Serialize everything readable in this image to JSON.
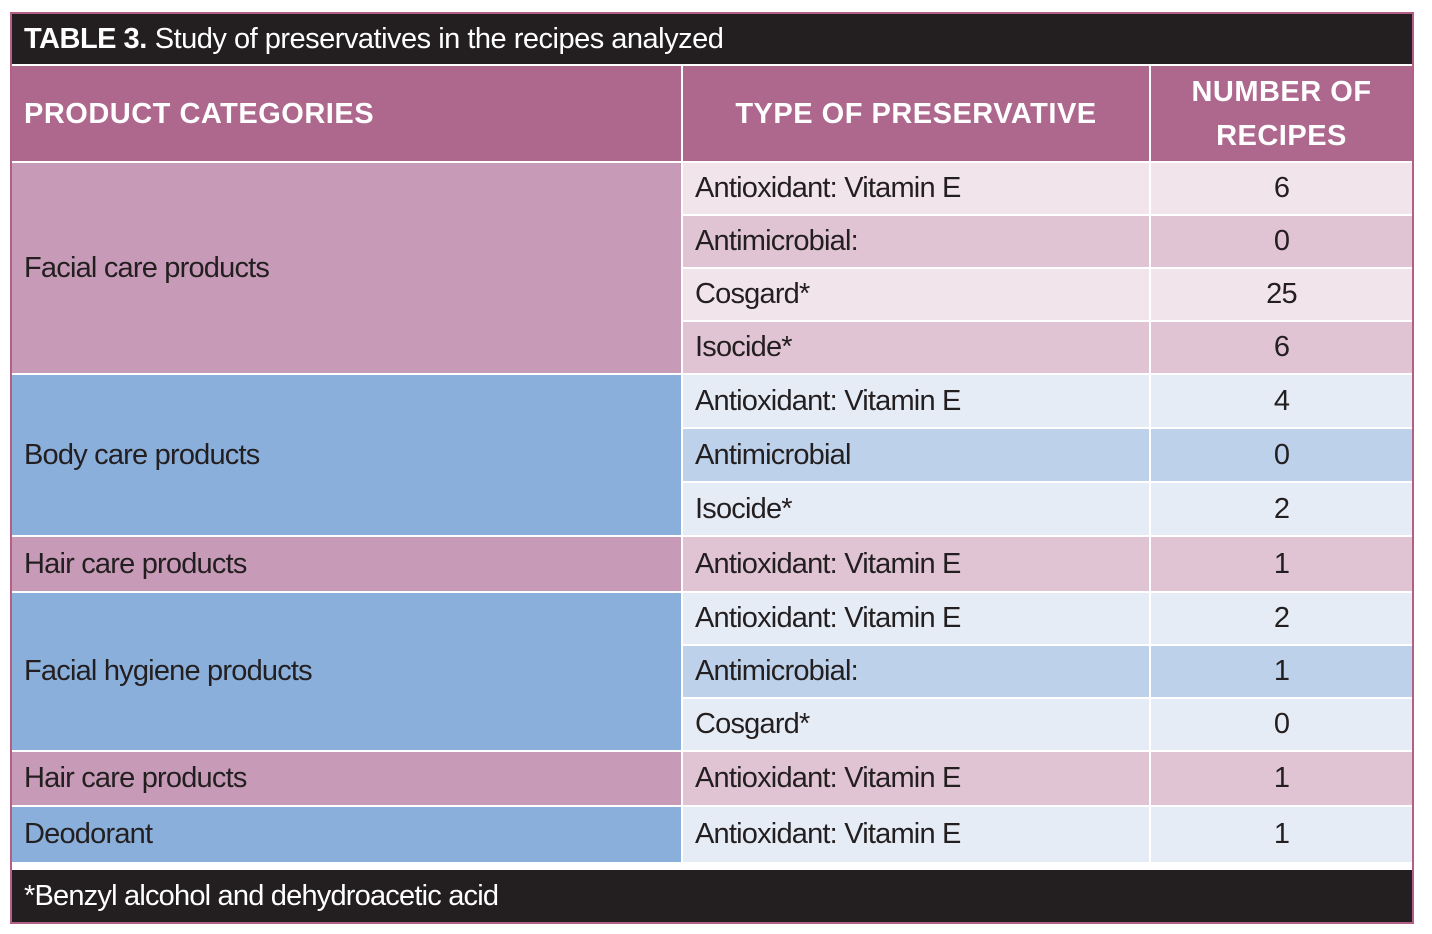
{
  "title": {
    "label": "TABLE 3.",
    "text": "Study of preservatives in the recipes analyzed"
  },
  "headers": {
    "category": "PRODUCT CATEGORIES",
    "type": "TYPE OF PRESERVATIVE",
    "count_line1": "NUMBER OF",
    "count_line2": "RECIPES"
  },
  "groups": [
    {
      "category": "Facial care products",
      "rows": [
        {
          "type": "Antioxidant: Vitamin E",
          "count": "6"
        },
        {
          "type": "Antimicrobial:",
          "count": "0"
        },
        {
          "type": "Cosgard*",
          "count": "25"
        },
        {
          "type": "Isocide*",
          "count": "6"
        }
      ]
    },
    {
      "category": "Body care products",
      "rows": [
        {
          "type": "Antioxidant: Vitamin E",
          "count": "4"
        },
        {
          "type": "Antimicrobial",
          "count": "0"
        },
        {
          "type": "Isocide*",
          "count": "2"
        }
      ]
    },
    {
      "category": "Hair care products",
      "rows": [
        {
          "type": "Antioxidant: Vitamin E",
          "count": "1"
        }
      ]
    },
    {
      "category": "Facial hygiene products",
      "rows": [
        {
          "type": "Antioxidant: Vitamin E",
          "count": "2"
        },
        {
          "type": "Antimicrobial:",
          "count": "1"
        },
        {
          "type": "Cosgard*",
          "count": "0"
        }
      ]
    },
    {
      "category": "Hair care products",
      "rows": [
        {
          "type": "Antioxidant: Vitamin E",
          "count": "1"
        }
      ]
    },
    {
      "category": "Deodorant",
      "rows": [
        {
          "type": "Antioxidant: Vitamin E",
          "count": "1"
        }
      ]
    }
  ],
  "footnote": "*Benzyl alcohol and dehydroacetic acid",
  "colors": {
    "title_bar": "#231f20",
    "header": "#ae678d",
    "pink_category": "#c79bb7",
    "pink_light": "#f2e4eb",
    "pink_mid": "#e0c4d4",
    "blue_category": "#8aafdb",
    "blue_light": "#e6ecf6",
    "blue_mid": "#bdd1ea"
  }
}
